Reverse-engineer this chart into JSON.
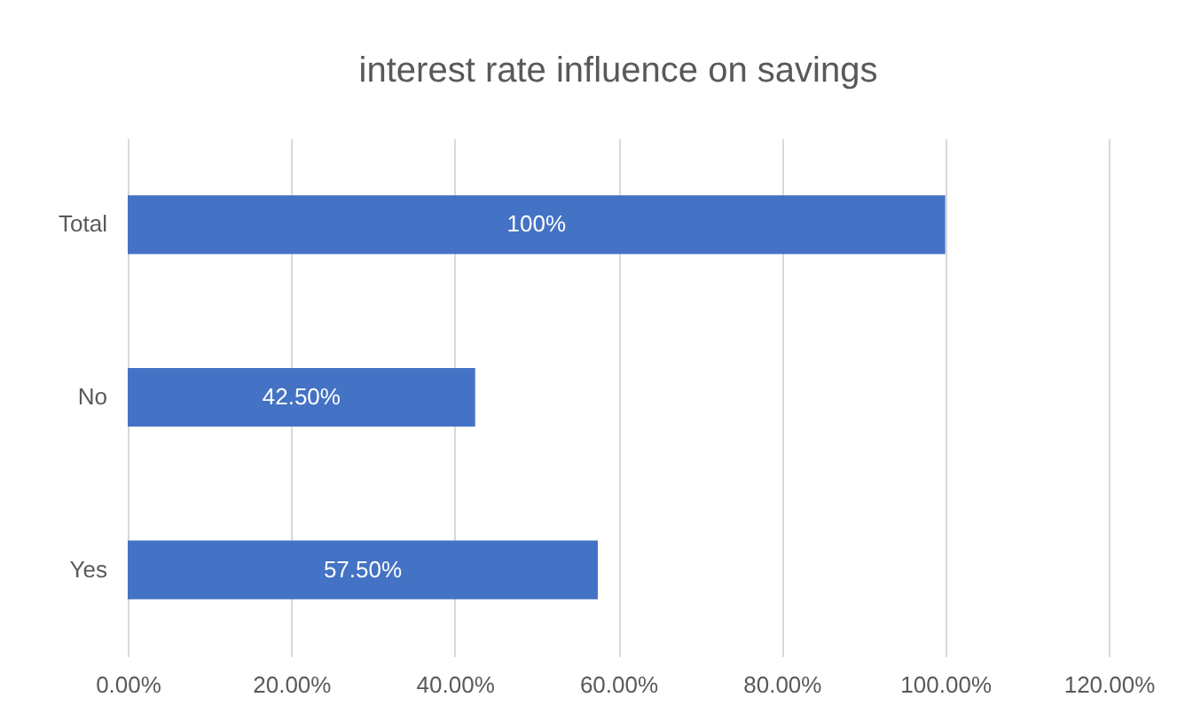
{
  "chart_data": {
    "type": "bar",
    "orientation": "horizontal",
    "title": "interest rate influence on savings",
    "categories": [
      "Total",
      "No",
      "Yes"
    ],
    "values": [
      100,
      42.5,
      57.5
    ],
    "value_labels": [
      "100%",
      "42.50%",
      "57.50%"
    ],
    "color": "#4472c4",
    "xlim": [
      0,
      120
    ],
    "xticks": [
      {
        "value": 0,
        "label": "0.00%"
      },
      {
        "value": 20,
        "label": "20.00%"
      },
      {
        "value": 40,
        "label": "40.00%"
      },
      {
        "value": 60,
        "label": "60.00%"
      },
      {
        "value": 80,
        "label": "80.00%"
      },
      {
        "value": 100,
        "label": "100.00%"
      },
      {
        "value": 120,
        "label": "120.00%"
      }
    ],
    "grid": "x"
  }
}
